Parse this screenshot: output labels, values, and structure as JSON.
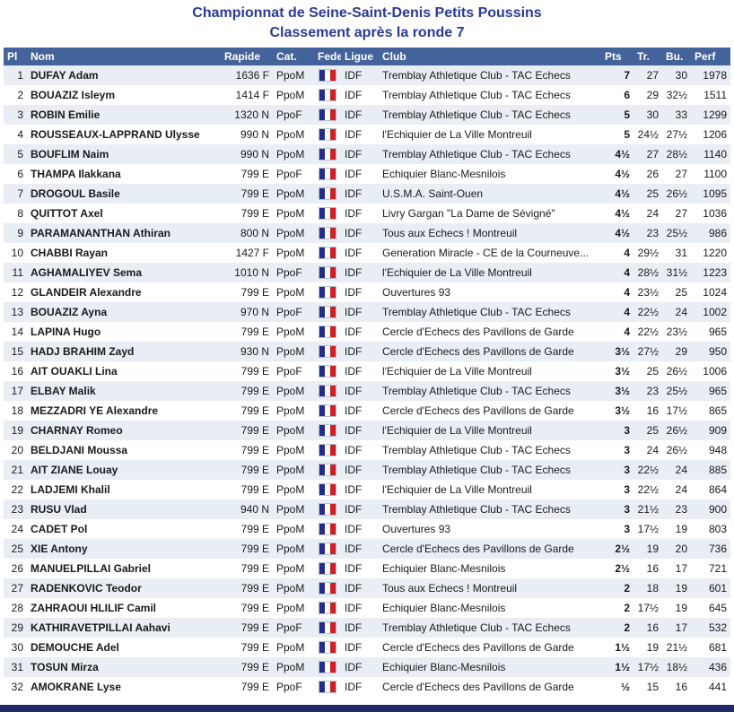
{
  "title": "Championnat de Seine-Saint-Denis Petits Poussins",
  "subtitle": "Classement après la ronde 7",
  "colors": {
    "title_text": "#2B3A96",
    "header_bg": "#45639B",
    "header_text": "#FFFFFF",
    "row_alt_bg": "#E9EDF4",
    "row_bg": "#FFFFFF",
    "name_link": "#2B3A96",
    "cell_text": "#1A1A1A",
    "flag_blue": "#232C8C",
    "flag_white": "#FFFFFF",
    "flag_red": "#CE2027",
    "footer_bar": "#1F2A66"
  },
  "table": {
    "columns": [
      "Pl",
      "Nom",
      "Rapide",
      "Cat.",
      "Fede",
      "Ligue",
      "Club",
      "Pts",
      "Tr.",
      "Bu.",
      "Perf"
    ],
    "fede_icon": "french-flag",
    "rows": [
      {
        "pl": "1",
        "nom": "DUFAY Adam",
        "rapide": "1636 F",
        "cat": "PpoM",
        "ligue": "IDF",
        "club": "Tremblay Athletique Club - TAC Echecs",
        "pts": "7",
        "tr": "27",
        "bu": "30",
        "perf": "1978"
      },
      {
        "pl": "2",
        "nom": "BOUAZIZ Isleym",
        "rapide": "1414 F",
        "cat": "PpoM",
        "ligue": "IDF",
        "club": "Tremblay Athletique Club - TAC Echecs",
        "pts": "6",
        "tr": "29",
        "bu": "32½",
        "perf": "1511"
      },
      {
        "pl": "3",
        "nom": "ROBIN Emilie",
        "rapide": "1320 N",
        "cat": "PpoF",
        "ligue": "IDF",
        "club": "Tremblay Athletique Club - TAC Echecs",
        "pts": "5",
        "tr": "30",
        "bu": "33",
        "perf": "1299"
      },
      {
        "pl": "4",
        "nom": "ROUSSEAUX-LAPPRAND Ulysse",
        "rapide": "990 N",
        "cat": "PpoM",
        "ligue": "IDF",
        "club": "l'Echiquier de La Ville Montreuil",
        "pts": "5",
        "tr": "24½",
        "bu": "27½",
        "perf": "1206"
      },
      {
        "pl": "5",
        "nom": "BOUFLIM Naim",
        "rapide": "990 N",
        "cat": "PpoM",
        "ligue": "IDF",
        "club": "Tremblay Athletique Club - TAC Echecs",
        "pts": "4½",
        "tr": "27",
        "bu": "28½",
        "perf": "1140"
      },
      {
        "pl": "6",
        "nom": "THAMPA Ilakkana",
        "rapide": "799 E",
        "cat": "PpoF",
        "ligue": "IDF",
        "club": "Echiquier Blanc-Mesnilois",
        "pts": "4½",
        "tr": "26",
        "bu": "27",
        "perf": "1100"
      },
      {
        "pl": "7",
        "nom": "DROGOUL Basile",
        "rapide": "799 E",
        "cat": "PpoM",
        "ligue": "IDF",
        "club": "U.S.M.A. Saint-Ouen",
        "pts": "4½",
        "tr": "25",
        "bu": "26½",
        "perf": "1095"
      },
      {
        "pl": "8",
        "nom": "QUITTOT Axel",
        "rapide": "799 E",
        "cat": "PpoM",
        "ligue": "IDF",
        "club": "Livry Gargan \"La Dame de Sévigné\"",
        "pts": "4½",
        "tr": "24",
        "bu": "27",
        "perf": "1036"
      },
      {
        "pl": "9",
        "nom": "PARAMANANTHAN Athiran",
        "rapide": "800 N",
        "cat": "PpoM",
        "ligue": "IDF",
        "club": "Tous aux Echecs ! Montreuil",
        "pts": "4½",
        "tr": "23",
        "bu": "25½",
        "perf": "986"
      },
      {
        "pl": "10",
        "nom": "CHABBI Rayan",
        "rapide": "1427 F",
        "cat": "PpoM",
        "ligue": "IDF",
        "club": "Generation Miracle - CE de la Courneuve...",
        "pts": "4",
        "tr": "29½",
        "bu": "31",
        "perf": "1220"
      },
      {
        "pl": "11",
        "nom": "AGHAMALIYEV Sema",
        "rapide": "1010 N",
        "cat": "PpoF",
        "ligue": "IDF",
        "club": "l'Echiquier de La Ville Montreuil",
        "pts": "4",
        "tr": "28½",
        "bu": "31½",
        "perf": "1223"
      },
      {
        "pl": "12",
        "nom": "GLANDEIR Alexandre",
        "rapide": "799 E",
        "cat": "PpoM",
        "ligue": "IDF",
        "club": "Ouvertures 93",
        "pts": "4",
        "tr": "23½",
        "bu": "25",
        "perf": "1024"
      },
      {
        "pl": "13",
        "nom": "BOUAZIZ Ayna",
        "rapide": "970 N",
        "cat": "PpoF",
        "ligue": "IDF",
        "club": "Tremblay Athletique Club - TAC Echecs",
        "pts": "4",
        "tr": "22½",
        "bu": "24",
        "perf": "1002"
      },
      {
        "pl": "14",
        "nom": "LAPINA Hugo",
        "rapide": "799 E",
        "cat": "PpoM",
        "ligue": "IDF",
        "club": "Cercle d'Echecs des Pavillons de Garde",
        "pts": "4",
        "tr": "22½",
        "bu": "23½",
        "perf": "965"
      },
      {
        "pl": "15",
        "nom": "HADJ BRAHIM Zayd",
        "rapide": "930 N",
        "cat": "PpoM",
        "ligue": "IDF",
        "club": "Cercle d'Echecs des Pavillons de Garde",
        "pts": "3½",
        "tr": "27½",
        "bu": "29",
        "perf": "950"
      },
      {
        "pl": "16",
        "nom": "AIT OUAKLI Lina",
        "rapide": "799 E",
        "cat": "PpoF",
        "ligue": "IDF",
        "club": "l'Echiquier de La Ville Montreuil",
        "pts": "3½",
        "tr": "25",
        "bu": "26½",
        "perf": "1006"
      },
      {
        "pl": "17",
        "nom": "ELBAY Malik",
        "rapide": "799 E",
        "cat": "PpoM",
        "ligue": "IDF",
        "club": "Tremblay Athletique Club - TAC Echecs",
        "pts": "3½",
        "tr": "23",
        "bu": "25½",
        "perf": "965"
      },
      {
        "pl": "18",
        "nom": "MEZZADRI YE Alexandre",
        "rapide": "799 E",
        "cat": "PpoM",
        "ligue": "IDF",
        "club": "Cercle d'Echecs des Pavillons de Garde",
        "pts": "3½",
        "tr": "16",
        "bu": "17½",
        "perf": "865"
      },
      {
        "pl": "19",
        "nom": "CHARNAY Romeo",
        "rapide": "799 E",
        "cat": "PpoM",
        "ligue": "IDF",
        "club": "l'Echiquier de La Ville Montreuil",
        "pts": "3",
        "tr": "25",
        "bu": "26½",
        "perf": "909"
      },
      {
        "pl": "20",
        "nom": "BELDJANI Moussa",
        "rapide": "799 E",
        "cat": "PpoM",
        "ligue": "IDF",
        "club": "Tremblay Athletique Club - TAC Echecs",
        "pts": "3",
        "tr": "24",
        "bu": "26½",
        "perf": "948"
      },
      {
        "pl": "21",
        "nom": "AIT ZIANE Louay",
        "rapide": "799 E",
        "cat": "PpoM",
        "ligue": "IDF",
        "club": "Tremblay Athletique Club - TAC Echecs",
        "pts": "3",
        "tr": "22½",
        "bu": "24",
        "perf": "885"
      },
      {
        "pl": "22",
        "nom": "LADJEMI Khalil",
        "rapide": "799 E",
        "cat": "PpoM",
        "ligue": "IDF",
        "club": "l'Echiquier de La Ville Montreuil",
        "pts": "3",
        "tr": "22½",
        "bu": "24",
        "perf": "864"
      },
      {
        "pl": "23",
        "nom": "RUSU Vlad",
        "rapide": "940 N",
        "cat": "PpoM",
        "ligue": "IDF",
        "club": "Tremblay Athletique Club - TAC Echecs",
        "pts": "3",
        "tr": "21½",
        "bu": "23",
        "perf": "900"
      },
      {
        "pl": "24",
        "nom": "CADET Pol",
        "rapide": "799 E",
        "cat": "PpoM",
        "ligue": "IDF",
        "club": "Ouvertures 93",
        "pts": "3",
        "tr": "17½",
        "bu": "19",
        "perf": "803"
      },
      {
        "pl": "25",
        "nom": "XIE Antony",
        "rapide": "799 E",
        "cat": "PpoM",
        "ligue": "IDF",
        "club": "Cercle d'Echecs des Pavillons de Garde",
        "pts": "2½",
        "tr": "19",
        "bu": "20",
        "perf": "736"
      },
      {
        "pl": "26",
        "nom": "MANUELPILLAI Gabriel",
        "rapide": "799 E",
        "cat": "PpoM",
        "ligue": "IDF",
        "club": "Echiquier Blanc-Mesnilois",
        "pts": "2½",
        "tr": "16",
        "bu": "17",
        "perf": "721"
      },
      {
        "pl": "27",
        "nom": "RADENKOVIC Teodor",
        "rapide": "799 E",
        "cat": "PpoM",
        "ligue": "IDF",
        "club": "Tous aux Echecs ! Montreuil",
        "pts": "2",
        "tr": "18",
        "bu": "19",
        "perf": "601"
      },
      {
        "pl": "28",
        "nom": "ZAHRAOUI HLILIF Camil",
        "rapide": "799 E",
        "cat": "PpoM",
        "ligue": "IDF",
        "club": "Echiquier Blanc-Mesnilois",
        "pts": "2",
        "tr": "17½",
        "bu": "19",
        "perf": "645"
      },
      {
        "pl": "29",
        "nom": "KATHIRAVETPILLAI Aahavi",
        "rapide": "799 E",
        "cat": "PpoF",
        "ligue": "IDF",
        "club": "Tremblay Athletique Club - TAC Echecs",
        "pts": "2",
        "tr": "16",
        "bu": "17",
        "perf": "532"
      },
      {
        "pl": "30",
        "nom": "DEMOUCHE Adel",
        "rapide": "799 E",
        "cat": "PpoM",
        "ligue": "IDF",
        "club": "Cercle d'Echecs des Pavillons de Garde",
        "pts": "1½",
        "tr": "19",
        "bu": "21½",
        "perf": "681"
      },
      {
        "pl": "31",
        "nom": "TOSUN Mirza",
        "rapide": "799 E",
        "cat": "PpoM",
        "ligue": "IDF",
        "club": "Echiquier Blanc-Mesnilois",
        "pts": "1½",
        "tr": "17½",
        "bu": "18½",
        "perf": "436"
      },
      {
        "pl": "32",
        "nom": "AMOKRANE Lyse",
        "rapide": "799 E",
        "cat": "PpoF",
        "ligue": "IDF",
        "club": "Cercle d'Echecs des Pavillons de Garde",
        "pts": "½",
        "tr": "15",
        "bu": "16",
        "perf": "441"
      }
    ]
  }
}
